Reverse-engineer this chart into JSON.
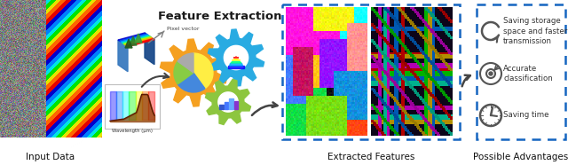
{
  "fig_width": 6.4,
  "fig_height": 1.86,
  "dpi": 100,
  "bg_color": "#ffffff",
  "labels": {
    "input_data": "Input Data",
    "feature_extraction": "Feature Extraction",
    "extracted_features": "Extracted Features",
    "possible_advantages": "Possible Advantages"
  },
  "advantages": [
    "Saving storage\nspace and faster\ntransmission",
    "Accurate\nclassification",
    "Saving time"
  ],
  "gear_colors": [
    "#F5A020",
    "#29ABE2",
    "#8DC63F"
  ],
  "box_color": "#1565C0",
  "arrow_color": "#444444",
  "label_fontsize": 7.5,
  "feat_extract_fontsize": 9.5,
  "adv_fontsize": 6.2
}
